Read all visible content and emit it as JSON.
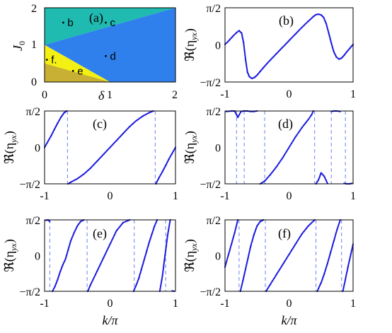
{
  "figure": {
    "y_tick_labels_phase": [
      "π/2",
      "0",
      "−π/2"
    ],
    "x_tick_labels_k": [
      "-1",
      "0",
      "1"
    ],
    "ylabel_phase": "ℜ(η",
    "ylabel_phase_sub": "yx",
    "xlabel_k": "k/π"
  },
  "colors": {
    "teal": "#1fbab0",
    "blue": "#2f80ec",
    "yellow": "#f4f014",
    "olive": "#c8b034",
    "curve": "#1a1adf",
    "dashed": "#6a7ff0"
  },
  "phase_diagram": {
    "panel_label": "(a)",
    "xlabel": "δ",
    "ylabel": "J",
    "ylabel_sub": "0",
    "x_ticks": [
      "0",
      "1",
      "2"
    ],
    "y_ticks": [
      "0",
      "1",
      "2"
    ],
    "regions": [
      {
        "name": "teal",
        "polygon": [
          [
            0,
            1
          ],
          [
            0,
            2
          ],
          [
            2,
            2
          ]
        ]
      },
      {
        "name": "blue",
        "polygon": [
          [
            0,
            1
          ],
          [
            2,
            2
          ],
          [
            2,
            0
          ],
          [
            1,
            0
          ]
        ]
      },
      {
        "name": "yellow",
        "polygon": [
          [
            0,
            0
          ],
          [
            0,
            1
          ],
          [
            1,
            0
          ]
        ]
      },
      {
        "name": "olive",
        "polygon": [
          [
            0,
            0
          ],
          [
            0,
            0.5
          ],
          [
            1,
            0
          ]
        ]
      }
    ],
    "points": [
      {
        "label": "b",
        "x": 0.35,
        "y": 1.6
      },
      {
        "label": "c",
        "x": 1.0,
        "y": 1.6
      },
      {
        "label": "d",
        "x": 1.0,
        "y": 0.7
      },
      {
        "label": "e",
        "x": 0.5,
        "y": 0.3
      },
      {
        "label": "f.",
        "x": 0.1,
        "y": 0.6
      }
    ]
  },
  "chart_data": [
    {
      "panel": "(b)",
      "type": "scatter",
      "xlabel": "",
      "xlim": [
        -1,
        1
      ],
      "ylim": [
        -1.5708,
        1.5708
      ],
      "series": [
        {
          "x": [
            -1,
            -0.94,
            -0.88,
            -0.82,
            -0.78,
            -0.74,
            -0.71,
            -0.68,
            -0.65,
            -0.62,
            -0.58,
            -0.54,
            -0.5,
            -0.45,
            -0.4,
            -0.3,
            -0.2,
            -0.1,
            0,
            0.1,
            0.2,
            0.3,
            0.38,
            0.42,
            0.46,
            0.5,
            0.54,
            0.58,
            0.62,
            0.66,
            0.7,
            0.74,
            0.78,
            0.82,
            0.86,
            0.9,
            0.95,
            1
          ],
          "y": [
            0.02,
            0.18,
            0.36,
            0.52,
            0.6,
            0.5,
            0.1,
            -0.6,
            -1.15,
            -1.34,
            -1.42,
            -1.38,
            -1.28,
            -1.12,
            -0.96,
            -0.66,
            -0.38,
            -0.1,
            0.18,
            0.46,
            0.74,
            1.0,
            1.2,
            1.28,
            1.3,
            1.27,
            1.16,
            0.9,
            0.5,
            0.08,
            -0.3,
            -0.52,
            -0.6,
            -0.56,
            -0.44,
            -0.3,
            -0.14,
            0.02
          ]
        }
      ],
      "jumps": []
    },
    {
      "panel": "(c)",
      "type": "scatter",
      "xlabel": "",
      "xlim": [
        -1,
        1
      ],
      "ylim": [
        -1.5708,
        1.5708
      ],
      "series": [
        {
          "x": [
            -1,
            -0.95,
            -0.9,
            -0.85,
            -0.8,
            -0.75,
            -0.7,
            -0.66,
            -0.64,
            -0.6,
            -0.5,
            -0.4,
            -0.3,
            -0.2,
            -0.1,
            0,
            0.1,
            0.2,
            0.3,
            0.4,
            0.5,
            0.6,
            0.66,
            0.7,
            0.75,
            0.8,
            0.85,
            0.9,
            0.95,
            1
          ],
          "y": [
            0.0,
            0.25,
            0.5,
            0.78,
            1.05,
            1.3,
            1.5,
            1.57,
            -1.57,
            -1.5,
            -1.35,
            -1.15,
            -0.9,
            -0.6,
            -0.3,
            0.0,
            0.3,
            0.6,
            0.9,
            1.15,
            1.35,
            1.5,
            1.57,
            -1.57,
            -1.3,
            -1.05,
            -0.78,
            -0.5,
            -0.25,
            0.0
          ]
        }
      ],
      "jumps": [
        -0.65,
        0.69
      ]
    },
    {
      "panel": "(d)",
      "type": "scatter",
      "xlabel": "",
      "xlim": [
        -1,
        1
      ],
      "ylim": [
        -1.5708,
        1.5708
      ],
      "series": [
        {
          "x": [
            -0.98,
            -0.9,
            -0.85,
            -0.8,
            -0.75,
            -0.7,
            -0.65,
            -0.6,
            -0.55,
            -0.5,
            -0.45,
            -0.38,
            -0.3,
            -0.2,
            -0.1,
            0,
            0.1,
            0.2,
            0.3,
            0.35,
            0.38,
            0.42,
            0.46,
            0.5,
            0.55,
            0.6,
            0.66,
            0.7,
            0.75,
            0.8,
            0.86,
            0.9,
            0.95,
            0.98
          ],
          "y": [
            1.55,
            1.57,
            1.57,
            1.3,
            1.55,
            1.57,
            1.57,
            1.55,
            1.55,
            1.57,
            -1.57,
            -1.45,
            -1.2,
            -0.85,
            -0.45,
            0.0,
            0.45,
            0.85,
            1.2,
            1.4,
            1.57,
            -1.57,
            -1.4,
            -1.1,
            -1.25,
            -1.55,
            1.55,
            1.57,
            1.57,
            1.55,
            -1.55,
            -1.57,
            -1.57,
            -1.55
          ]
        }
      ],
      "jumps": [
        -0.82,
        -0.7,
        -0.38,
        0.4,
        0.66,
        0.88
      ]
    },
    {
      "panel": "(e)",
      "type": "scatter",
      "xlabel": "k/π",
      "xlim": [
        -1,
        1
      ],
      "ylim": [
        -1.5708,
        1.5708
      ],
      "series": [
        {
          "x": [
            -0.98,
            -0.95,
            -0.92,
            -0.88,
            -0.84,
            -0.8,
            -0.76,
            -0.72,
            -0.68,
            -0.64,
            -0.6,
            -0.55,
            -0.5,
            -0.45,
            -0.4,
            -0.34,
            -0.3,
            -0.2,
            -0.1,
            0,
            0.1,
            0.2,
            0.3,
            0.36,
            0.4,
            0.44,
            0.48,
            0.52,
            0.56,
            0.6,
            0.64,
            0.68,
            0.72,
            0.76,
            0.8,
            0.84,
            0.88,
            0.92,
            0.95,
            0.98
          ],
          "y": [
            1.55,
            1.57,
            1.5,
            -1.57,
            -1.35,
            -1.05,
            -0.7,
            -0.4,
            -0.15,
            0.25,
            0.65,
            1.0,
            1.3,
            1.5,
            1.57,
            -1.57,
            -1.3,
            -0.7,
            -0.1,
            0.5,
            1.1,
            1.45,
            1.57,
            -1.57,
            -1.3,
            -1.0,
            -0.6,
            -0.2,
            0.2,
            0.6,
            0.95,
            1.3,
            1.57,
            -1.57,
            -0.9,
            0.0,
            0.9,
            1.57,
            -1.55,
            -1.57
          ]
        }
      ],
      "jumps": [
        -0.92,
        -0.35,
        0.37,
        0.85
      ]
    },
    {
      "panel": "(f)",
      "type": "scatter",
      "xlabel": "k/π",
      "xlim": [
        -1,
        1
      ],
      "ylim": [
        -1.5708,
        1.5708
      ],
      "series": [
        {
          "x": [
            -1,
            -0.95,
            -0.9,
            -0.85,
            -0.8,
            -0.76,
            -0.72,
            -0.68,
            -0.64,
            -0.6,
            -0.55,
            -0.5,
            -0.45,
            -0.4,
            -0.36,
            -0.3,
            -0.2,
            -0.1,
            0,
            0.1,
            0.2,
            0.3,
            0.4,
            0.44,
            0.5,
            0.55,
            0.6,
            0.65,
            0.7,
            0.75,
            0.8,
            0.84,
            0.88,
            0.92,
            0.96,
            1
          ],
          "y": [
            -0.5,
            0.0,
            0.5,
            1.0,
            1.57,
            -1.57,
            -1.1,
            -0.6,
            -0.1,
            0.4,
            0.9,
            1.3,
            1.5,
            1.57,
            -1.57,
            -1.3,
            -0.85,
            -0.4,
            0.05,
            0.5,
            0.95,
            1.3,
            1.57,
            -1.57,
            -1.2,
            -0.8,
            -0.35,
            0.15,
            0.65,
            1.15,
            1.57,
            -1.57,
            -1.05,
            -0.5,
            0.0,
            0.5
          ]
        }
      ],
      "jumps": [
        -0.78,
        -0.37,
        0.42,
        0.82
      ]
    }
  ]
}
